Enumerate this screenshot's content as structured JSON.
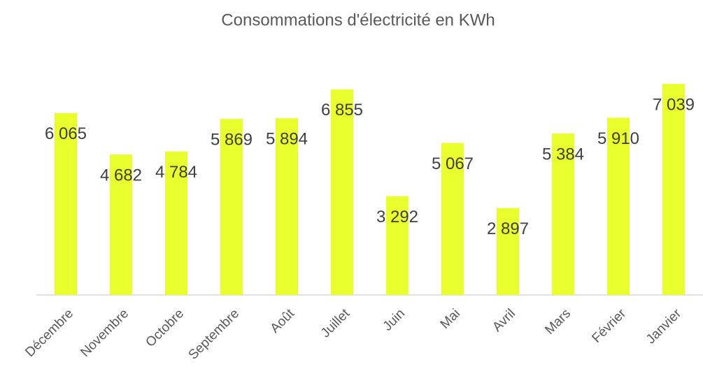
{
  "chart_data": {
    "type": "bar",
    "title": "Consommations d'électricité en KWh",
    "categories": [
      "Décembre",
      "Novembre",
      "Octobre",
      "Septembre",
      "Août",
      "Juillet",
      "Juin",
      "Mai",
      "Avril",
      "Mars",
      "Février",
      "Janvier"
    ],
    "values": [
      6065,
      4682,
      4784,
      5869,
      5894,
      6855,
      3292,
      5067,
      2897,
      5384,
      5910,
      7039
    ],
    "value_labels": [
      "6 065",
      "4 682",
      "4 784",
      "5 869",
      "5 894",
      "6 855",
      "3 292",
      "5 067",
      "2 897",
      "5 384",
      "5 910",
      "7 039"
    ],
    "color": "#eaff2e"
  }
}
